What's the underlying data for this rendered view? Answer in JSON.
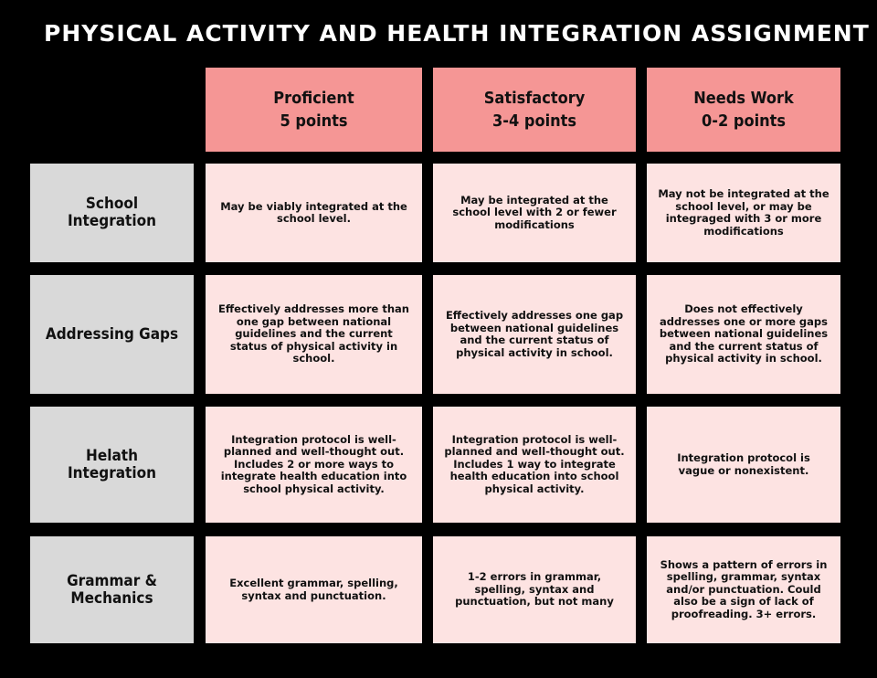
{
  "title": "PHYSICAL ACTIVITY AND HEALTH INTEGRATION ASSIGNMENT",
  "columns": [
    {
      "name": "Proficient",
      "points": "5 points"
    },
    {
      "name": "Satisfactory",
      "points": "3-4 points"
    },
    {
      "name": "Needs Work",
      "points": "0-2 points"
    }
  ],
  "rows": [
    {
      "label": "School Integration",
      "cells": [
        "May be viably integrated at the school level.",
        "May be integrated at the school level with 2 or fewer modifications",
        "May not be integrated at the school level, or may be integraged with 3 or more modifications"
      ]
    },
    {
      "label": "Addressing Gaps",
      "cells": [
        "Effectively addresses more than one gap between national guidelines and the current status of physical activity in school.",
        "Effectively addresses one  gap between national guidelines and the current status of physical activity in school.",
        "Does not effectively addresses one or more gaps between national guidelines and the current status of physical activity in school."
      ]
    },
    {
      "label": "Helath Integration",
      "cells": [
        "Integration protocol is well-planned and well-thought out. Includes 2 or more ways to integrate health education into school physical activity.",
        "Integration protocol is well-planned and well-thought out. Includes 1 way to integrate health education into school physical activity.",
        "Integration protocol is vague or nonexistent."
      ]
    },
    {
      "label": "Grammar & Mechanics",
      "cells": [
        "Excellent grammar, spelling, syntax and punctuation.",
        "1-2 errors in grammar, spelling, syntax and punctuation, but not many",
        "Shows a pattern of errors in spelling, grammar, syntax and/or punctuation. Could also be a sign of lack of proofreading. 3+ errors."
      ]
    }
  ]
}
